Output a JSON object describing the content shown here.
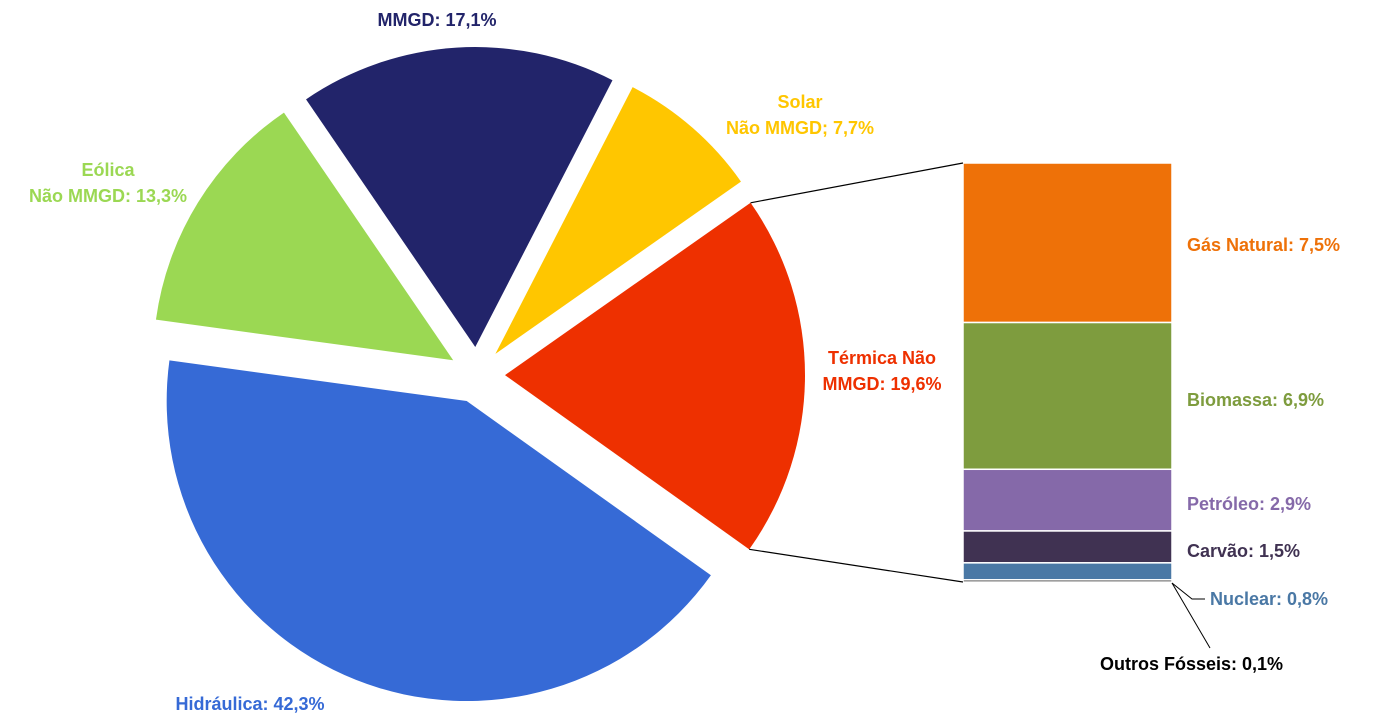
{
  "chart_data": {
    "type": "pie",
    "values": [
      42.3,
      13.3,
      17.1,
      7.7,
      19.6
    ],
    "value_labels": [
      [
        "Hidráulica: 42,3%"
      ],
      [
        "Eólica",
        "Não MMGD: 13,3%"
      ],
      [
        "MMGD: 17,1%"
      ],
      [
        "Solar",
        "Não MMGD; 7,7%"
      ],
      [
        "Térmica Não",
        "MMGD: 19,6%"
      ]
    ],
    "colors": [
      "#366ad6",
      "#9bd853",
      "#22246a",
      "#ffc600",
      "#ee3000"
    ],
    "bar": {
      "type": "stacked_bar",
      "values": [
        7.5,
        6.9,
        2.9,
        1.5,
        0.8,
        0.1
      ],
      "value_labels": [
        [
          "Gás Natural: 7,5%"
        ],
        [
          "Biomassa: 6,9%"
        ],
        [
          "Petróleo: 2,9%"
        ],
        [
          "Carvão: 1,5%"
        ],
        [
          "Nuclear: 0,8%"
        ],
        [
          "Outros Fósseis: 0,1%"
        ]
      ],
      "colors": [
        "#ee7108",
        "#7e9c3e",
        "#8569a9",
        "#403252",
        "#4a78a5",
        "#000000"
      ]
    }
  }
}
